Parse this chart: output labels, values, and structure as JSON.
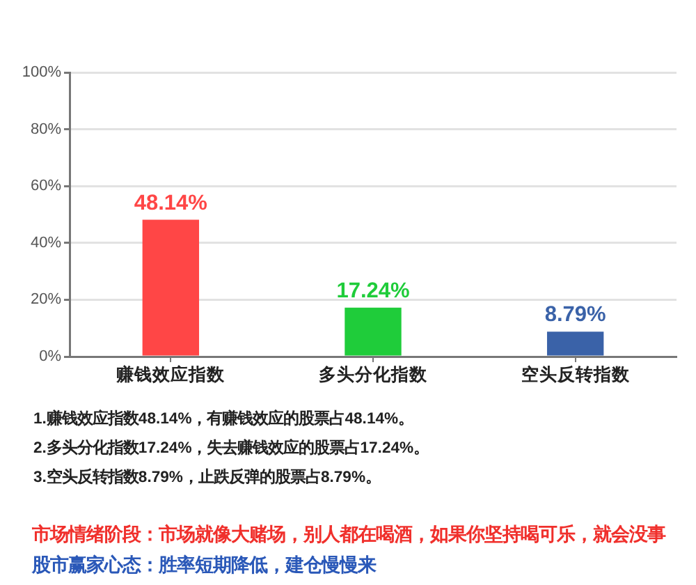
{
  "chart_data": {
    "type": "bar",
    "categories": [
      "赚钱效应指数",
      "多头分化指数",
      "空头反转指数"
    ],
    "values": [
      48.14,
      17.24,
      8.79
    ],
    "colors": [
      "#ff4646",
      "#1fcc3a",
      "#3a62a8"
    ],
    "value_labels": [
      "48.14%",
      "17.24%",
      "8.79%"
    ],
    "ylim": [
      0,
      100
    ],
    "yticks": [
      {
        "value": 0,
        "label": "0%"
      },
      {
        "value": 20,
        "label": "20%"
      },
      {
        "value": 40,
        "label": "40%"
      },
      {
        "value": 60,
        "label": "60%"
      },
      {
        "value": 80,
        "label": "80%"
      },
      {
        "value": 100,
        "label": "100%"
      }
    ],
    "grid": "y",
    "annotations": [
      "1.赚钱效应指数48.14%，有赚钱效应的股票占48.14%。",
      "2.多头分化指数17.24%，失去赚钱效应的股票占17.24%。",
      "3.空头反转指数8.79%，止跌反弹的股票占8.79%。",
      "市场情绪阶段：市场就像大赌场，别人都在喝酒，如果你坚持喝可乐，就会没事",
      "股市赢家心态：胜率短期降低，建仓慢慢来"
    ]
  }
}
